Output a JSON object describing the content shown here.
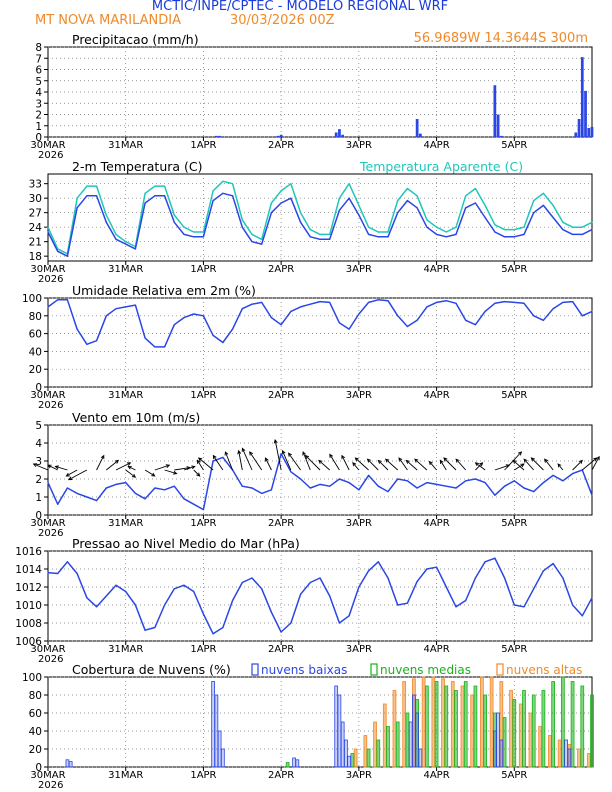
{
  "header": {
    "title": "MCTIC/INPE/CPTEC - MODELO REGIONAL WRF",
    "location": "MT NOVA MARILANDIA",
    "run": "30/03/2026 00Z",
    "coords": "56.9689W 14.3644S 300m"
  },
  "colors": {
    "title": "#1a3ad9",
    "header_orange": "#f08a28",
    "line_blue": "#2a46e6",
    "apparent_cyan": "#1fc7b8",
    "clouds_low": "#2a46e6",
    "clouds_mid": "#19b319",
    "clouds_high": "#f08a28"
  },
  "time_axis": {
    "hours": 144,
    "tick_labels": [
      "30MAR",
      "31MAR",
      "1APR",
      "2APR",
      "3APR",
      "4APR",
      "5APR"
    ],
    "tick_hours": [
      0,
      24,
      48,
      72,
      96,
      120,
      144
    ],
    "year_label": "2026"
  },
  "chart_data": [
    {
      "type": "bar",
      "id": "precip",
      "title": "Precipitacao (mm/h)",
      "ylim": [
        0,
        8
      ],
      "yticks": [
        0,
        1,
        2,
        3,
        4,
        5,
        6,
        7,
        8
      ],
      "x_hours": [
        52,
        53,
        71,
        72,
        89,
        90,
        91,
        114,
        115,
        138,
        139,
        140,
        163,
        164,
        165,
        166,
        167,
        168
      ],
      "values": [
        0.1,
        0.1,
        0.1,
        0.2,
        0.4,
        0.7,
        0.2,
        1.6,
        0.3,
        4.6,
        2.0,
        0.1,
        0.4,
        1.6,
        7.1,
        4.1,
        0.8,
        0.9
      ]
    },
    {
      "type": "line",
      "id": "temperature",
      "title": "2-m Temperatura (C)",
      "legend_extra": "Temperatura Aparente (C)",
      "ylim": [
        17,
        35
      ],
      "yticks": [
        18,
        21,
        24,
        27,
        30,
        33
      ],
      "series": [
        {
          "name": "2-m Temperatura (C)",
          "x_hours": [
            0,
            3,
            6,
            9,
            12,
            15,
            18,
            21,
            24,
            27,
            30,
            33,
            36,
            39,
            42,
            45,
            48,
            51,
            54,
            57,
            60,
            63,
            66,
            69,
            72,
            75,
            78,
            81,
            84,
            87,
            90,
            93,
            96,
            99,
            102,
            105,
            108,
            111,
            114,
            117,
            120,
            123,
            126,
            129,
            132,
            135,
            138,
            141,
            144,
            147,
            150,
            153,
            156,
            159,
            162,
            165,
            168
          ],
          "values": [
            23,
            19,
            18,
            28,
            30.5,
            30.5,
            25,
            21.5,
            20.5,
            19.5,
            29,
            30.5,
            30.5,
            25,
            22.5,
            22,
            22,
            29.5,
            31,
            30.5,
            24,
            21,
            20.5,
            27,
            29,
            30,
            25,
            22,
            21.5,
            21.5,
            27.5,
            30,
            26.5,
            22.5,
            22,
            22,
            27,
            29.5,
            28,
            24,
            22.5,
            22,
            22.5,
            28,
            29,
            26,
            23,
            22,
            22,
            22.5,
            27,
            28.5,
            26,
            23.5,
            22.5,
            22.5,
            23.5
          ]
        },
        {
          "name": "Temperatura Aparente (C)",
          "x_hours": [
            0,
            3,
            6,
            9,
            12,
            15,
            18,
            21,
            24,
            27,
            30,
            33,
            36,
            39,
            42,
            45,
            48,
            51,
            54,
            57,
            60,
            63,
            66,
            69,
            72,
            75,
            78,
            81,
            84,
            87,
            90,
            93,
            96,
            99,
            102,
            105,
            108,
            111,
            114,
            117,
            120,
            123,
            126,
            129,
            132,
            135,
            138,
            141,
            144,
            147,
            150,
            153,
            156,
            159,
            162,
            165,
            168
          ],
          "values": [
            24,
            19.5,
            18.5,
            30,
            32.5,
            32.5,
            26.5,
            22.5,
            21,
            20,
            31,
            32.5,
            32.5,
            26.5,
            24,
            23,
            23,
            31.5,
            33.5,
            33,
            25.5,
            22.5,
            21.5,
            29,
            31.5,
            33,
            27,
            23.5,
            22.5,
            22.5,
            30,
            33,
            28.5,
            24,
            23,
            23,
            29.5,
            32,
            30.5,
            25.5,
            24,
            23,
            24,
            30.5,
            32,
            28.5,
            24.5,
            23.5,
            23.5,
            24,
            29.5,
            31,
            28.5,
            25,
            24,
            24,
            25
          ]
        }
      ]
    },
    {
      "type": "line",
      "id": "humidity",
      "title": "Umidade Relativa em 2m (%)",
      "ylim": [
        0,
        100
      ],
      "yticks": [
        0,
        20,
        40,
        60,
        80,
        100
      ],
      "series": [
        {
          "name": "Umidade Relativa em 2m (%)",
          "x_hours": [
            0,
            3,
            6,
            9,
            12,
            15,
            18,
            21,
            24,
            27,
            30,
            33,
            36,
            39,
            42,
            45,
            48,
            51,
            54,
            57,
            60,
            63,
            66,
            69,
            72,
            75,
            78,
            81,
            84,
            87,
            90,
            93,
            96,
            99,
            102,
            105,
            108,
            111,
            114,
            117,
            120,
            123,
            126,
            129,
            132,
            135,
            138,
            141,
            144,
            147,
            150,
            153,
            156,
            159,
            162,
            165,
            168
          ],
          "values": [
            90,
            98,
            98,
            65,
            48,
            52,
            80,
            88,
            90,
            92,
            55,
            45,
            45,
            70,
            78,
            82,
            80,
            58,
            50,
            65,
            88,
            93,
            95,
            78,
            70,
            85,
            90,
            93,
            96,
            95,
            72,
            65,
            82,
            95,
            98,
            97,
            80,
            68,
            75,
            90,
            95,
            97,
            94,
            75,
            70,
            85,
            94,
            96,
            95,
            94,
            80,
            75,
            88,
            95,
            96,
            80,
            85
          ]
        }
      ]
    },
    {
      "type": "line",
      "id": "wind",
      "title": "Vento em 10m (m/s)",
      "ylim": [
        0,
        5
      ],
      "yticks": [
        0,
        1,
        2,
        3,
        4,
        5
      ],
      "series": [
        {
          "name": "Vento em 10m (m/s)",
          "x_hours": [
            0,
            3,
            6,
            9,
            12,
            15,
            18,
            21,
            24,
            27,
            30,
            33,
            36,
            39,
            42,
            45,
            48,
            51,
            54,
            57,
            60,
            63,
            66,
            69,
            72,
            75,
            78,
            81,
            84,
            87,
            90,
            93,
            96,
            99,
            102,
            105,
            108,
            111,
            114,
            117,
            120,
            123,
            126,
            129,
            132,
            135,
            138,
            141,
            144,
            147,
            150,
            153,
            156,
            159,
            162,
            165,
            168
          ],
          "values": [
            1.8,
            0.6,
            1.5,
            1.2,
            1.0,
            0.8,
            1.5,
            1.7,
            1.8,
            1.2,
            0.9,
            1.5,
            1.4,
            1.6,
            0.9,
            0.6,
            0.3,
            3.0,
            3.2,
            2.5,
            1.6,
            1.5,
            1.2,
            1.4,
            3.4,
            2.4,
            2.0,
            1.5,
            1.7,
            1.6,
            2.0,
            1.8,
            1.4,
            2.2,
            1.6,
            1.3,
            2.0,
            1.9,
            1.5,
            1.8,
            1.7,
            1.6,
            1.5,
            1.9,
            2.0,
            1.8,
            1.1,
            1.6,
            1.9,
            1.5,
            1.3,
            1.8,
            2.2,
            1.9,
            2.3,
            2.5,
            1.1
          ]
        }
      ],
      "vectors": {
        "x_hours": [
          0,
          3,
          6,
          9,
          12,
          15,
          18,
          21,
          24,
          27,
          30,
          33,
          36,
          39,
          42,
          45,
          48,
          51,
          54,
          57,
          60,
          63,
          66,
          69,
          72,
          75,
          78,
          81,
          84,
          87,
          90,
          93,
          96,
          99,
          102,
          105,
          108,
          111,
          114,
          117,
          120,
          123,
          126,
          129,
          132,
          135,
          138,
          141,
          144,
          147,
          150,
          153,
          156,
          159,
          162,
          165,
          168
        ],
        "u": [
          -1.2,
          -0.8,
          -1.0,
          -0.9,
          -1.5,
          0.6,
          1.0,
          1.2,
          0.8,
          -0.6,
          0.8,
          1.2,
          1.0,
          1.3,
          0.9,
          0.5,
          -0.5,
          -1.2,
          -0.8,
          -0.6,
          -0.3,
          -0.8,
          -1.0,
          -0.5,
          -0.5,
          -0.7,
          -1.0,
          -0.6,
          -1.2,
          -0.9,
          -0.8,
          -0.6,
          -0.5,
          -1.1,
          -0.9,
          -0.8,
          -1.0,
          -0.7,
          -0.9,
          -1.0,
          -0.6,
          -0.5,
          -1.0,
          -0.8,
          0.6,
          -0.8,
          1.2,
          1.4,
          0.8,
          -0.9,
          -0.8,
          -1.0,
          -0.7,
          -0.4,
          0.8,
          1.2,
          0.6
        ],
        "v": [
          0.5,
          0.4,
          0.3,
          -0.5,
          -0.8,
          1.2,
          0.8,
          0.6,
          -0.6,
          0.3,
          -0.5,
          0.4,
          -0.3,
          0.2,
          0.3,
          -0.5,
          0.8,
          1.0,
          1.2,
          1.5,
          1.6,
          1.8,
          1.5,
          1.0,
          2.5,
          1.6,
          1.4,
          1.5,
          1.2,
          0.8,
          1.3,
          1.2,
          0.6,
          1.0,
          0.9,
          0.8,
          0.9,
          1.0,
          0.8,
          0.9,
          0.7,
          0.8,
          1.0,
          0.9,
          0.6,
          0.6,
          0.4,
          1.5,
          0.5,
          0.8,
          0.9,
          1.0,
          0.9,
          0.5,
          0.8,
          1.0,
          1.1
        ]
      }
    },
    {
      "type": "line",
      "id": "pressure",
      "title": "Pressao ao Nivel Medio do Mar (hPa)",
      "ylim": [
        1006,
        1016
      ],
      "yticks": [
        1006,
        1008,
        1010,
        1012,
        1014,
        1016
      ],
      "series": [
        {
          "name": "Pressao ao Nivel Medio do Mar (hPa)",
          "x_hours": [
            0,
            3,
            6,
            9,
            12,
            15,
            18,
            21,
            24,
            27,
            30,
            33,
            36,
            39,
            42,
            45,
            48,
            51,
            54,
            57,
            60,
            63,
            66,
            69,
            72,
            75,
            78,
            81,
            84,
            87,
            90,
            93,
            96,
            99,
            102,
            105,
            108,
            111,
            114,
            117,
            120,
            123,
            126,
            129,
            132,
            135,
            138,
            141,
            144,
            147,
            150,
            153,
            156,
            159,
            162,
            165,
            168
          ],
          "values": [
            1013.6,
            1013.5,
            1014.8,
            1013.5,
            1010.8,
            1009.8,
            1011.0,
            1012.2,
            1011.5,
            1010.0,
            1007.2,
            1007.5,
            1010.0,
            1011.8,
            1012.2,
            1011.5,
            1009.0,
            1006.8,
            1007.5,
            1010.5,
            1012.5,
            1013.0,
            1011.8,
            1009.2,
            1007.0,
            1008.0,
            1011.2,
            1012.5,
            1013.0,
            1011.0,
            1008.0,
            1008.8,
            1012.0,
            1013.8,
            1014.8,
            1013.0,
            1010.0,
            1010.2,
            1012.6,
            1014.0,
            1014.2,
            1012.0,
            1009.8,
            1010.5,
            1013.0,
            1014.8,
            1015.2,
            1013.0,
            1010.0,
            1009.8,
            1011.8,
            1013.8,
            1014.6,
            1013.0,
            1010.0,
            1008.8,
            1010.8
          ]
        }
      ]
    },
    {
      "type": "bar",
      "id": "clouds",
      "title": "Cobertura de Nuvens (%)",
      "legend": [
        "nuvens baixas",
        "nuvens medias",
        "nuvens altas"
      ],
      "ylim": [
        0,
        100
      ],
      "yticks": [
        0,
        20,
        40,
        60,
        80,
        100
      ],
      "series": [
        {
          "name": "nuvens baixas",
          "x_hours": [
            6,
            7,
            51,
            52,
            53,
            54,
            76,
            77,
            89,
            90,
            91,
            92,
            93,
            112,
            113,
            114,
            115,
            138,
            139,
            140,
            160,
            161
          ],
          "values": [
            8,
            6,
            95,
            80,
            40,
            20,
            10,
            8,
            90,
            80,
            50,
            30,
            12,
            50,
            80,
            60,
            20,
            40,
            60,
            30,
            30,
            20
          ]
        },
        {
          "name": "nuvens medias",
          "x_hours": [
            74,
            94,
            99,
            102,
            105,
            108,
            111,
            114,
            117,
            120,
            123,
            126,
            129,
            132,
            135,
            138,
            141,
            144,
            147,
            150,
            153,
            156,
            159,
            162,
            165,
            168
          ],
          "values": [
            5,
            15,
            20,
            30,
            45,
            50,
            60,
            75,
            90,
            95,
            90,
            85,
            95,
            90,
            80,
            60,
            55,
            75,
            85,
            80,
            85,
            95,
            100,
            95,
            90,
            80
          ]
        },
        {
          "name": "nuvens altas",
          "x_hours": [
            95,
            98,
            101,
            104,
            107,
            110,
            113,
            116,
            119,
            122,
            125,
            128,
            131,
            134,
            137,
            140,
            143,
            146,
            149,
            152,
            155,
            158,
            161,
            164,
            167
          ],
          "values": [
            20,
            35,
            50,
            70,
            85,
            95,
            98,
            100,
            100,
            98,
            95,
            90,
            80,
            100,
            100,
            95,
            85,
            70,
            60,
            45,
            35,
            30,
            25,
            20,
            15
          ]
        }
      ]
    }
  ]
}
